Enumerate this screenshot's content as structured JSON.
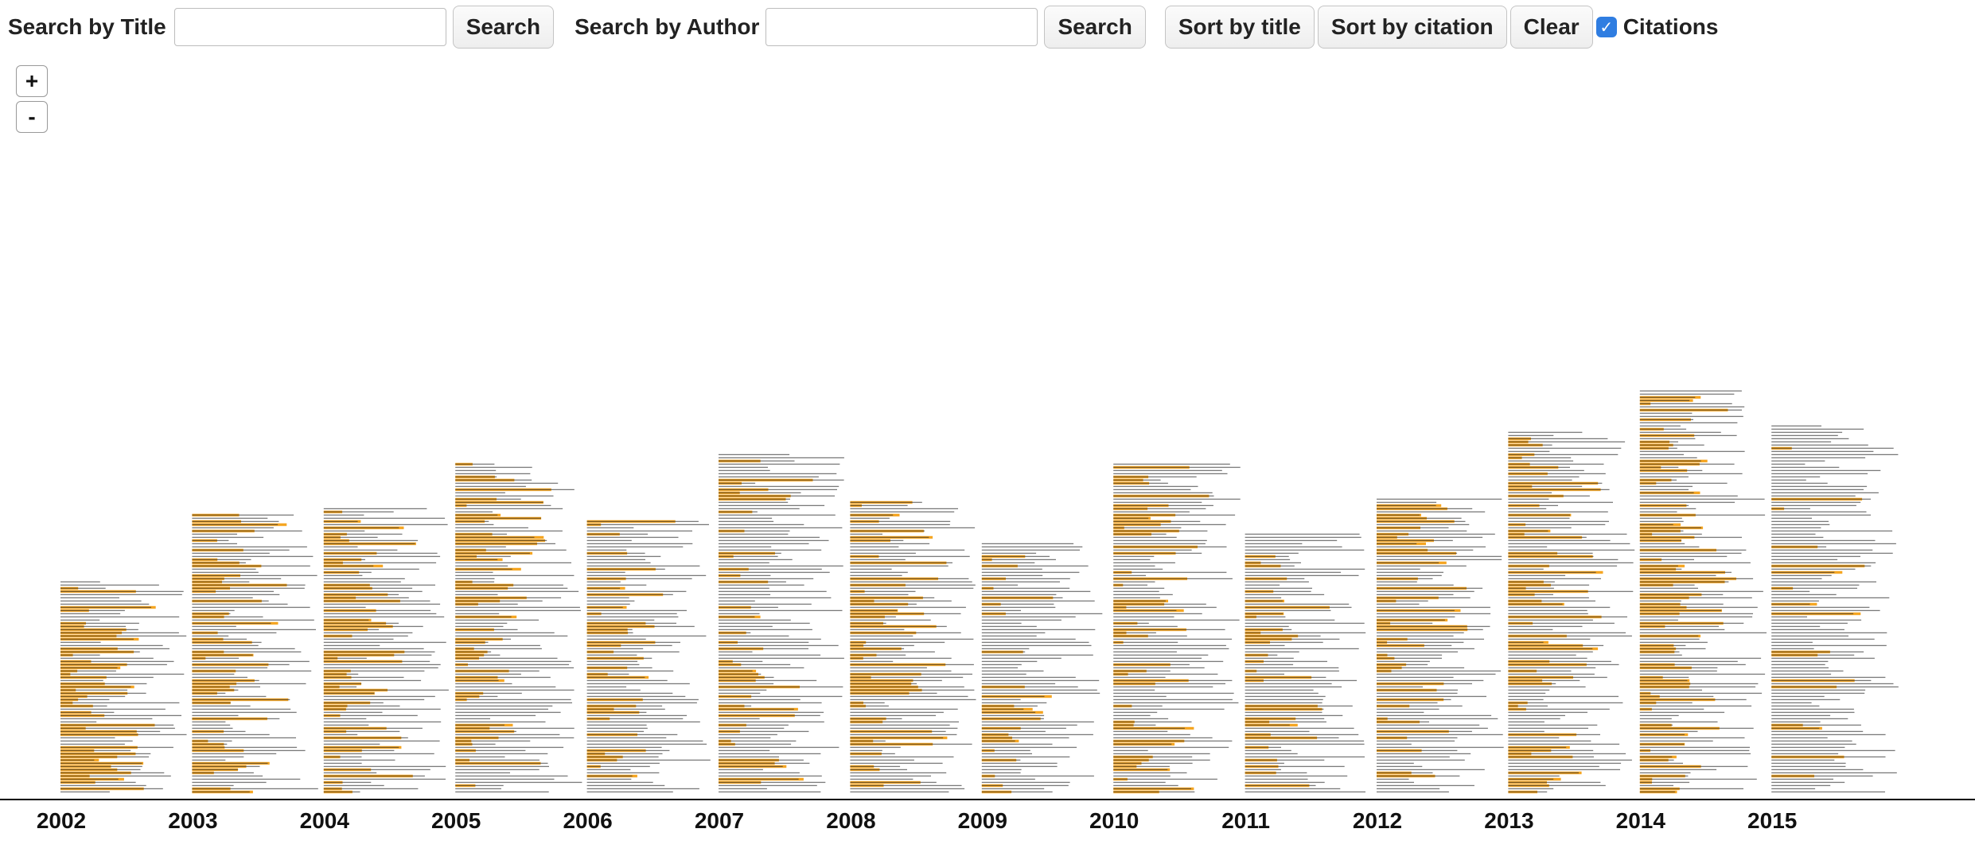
{
  "toolbar": {
    "search_title_label": "Search by Title",
    "search_title_value": "",
    "search_title_button": "Search",
    "search_author_label": "Search by Author",
    "search_author_value": "",
    "search_author_button": "Search",
    "sort_title_button": "Sort by title",
    "sort_citation_button": "Sort by citation",
    "clear_button": "Clear",
    "citations_label": "Citations",
    "citations_checked": true
  },
  "zoom": {
    "in_label": "+",
    "out_label": "-"
  },
  "colors": {
    "highlight": "#f5a623",
    "text": "#333333",
    "axis": "#000000",
    "checkbox": "#2f7de1"
  },
  "chart_data": {
    "type": "bar",
    "xlabel": "",
    "ylabel": "",
    "categories": [
      "2002",
      "2003",
      "2004",
      "2005",
      "2006",
      "2007",
      "2008",
      "2009",
      "2010",
      "2011",
      "2012",
      "2013",
      "2014",
      "2015"
    ],
    "values": [
      67,
      88,
      90,
      104,
      86,
      107,
      92,
      79,
      104,
      82,
      93,
      114,
      127,
      116
    ],
    "series": [
      {
        "name": "Citations",
        "values": [
          40,
          48,
          42,
          46,
          30,
          36,
          45,
          28,
          50,
          35,
          40,
          52,
          60,
          18
        ]
      }
    ]
  }
}
